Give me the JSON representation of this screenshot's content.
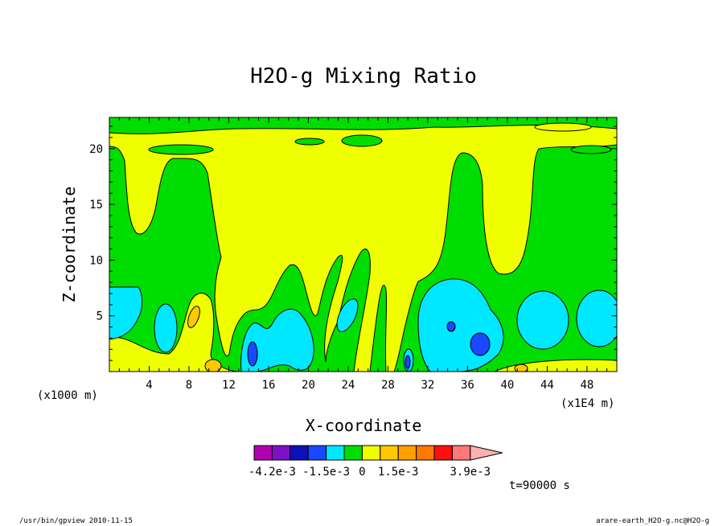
{
  "chart_data": {
    "type": "heatmap",
    "title": "H2O-g Mixing Ratio",
    "xlabel": "X-coordinate",
    "ylabel": "Z-coordinate",
    "x_unit_left": "(x1000 m)",
    "x_unit_right": "(x1E4 m)",
    "x_ticks": [
      "4",
      "8",
      "12",
      "16",
      "20",
      "24",
      "28",
      "32",
      "36",
      "40",
      "44",
      "48"
    ],
    "y_ticks": [
      "5",
      "10",
      "15",
      "20"
    ],
    "xlim": [
      0,
      51
    ],
    "ylim": [
      0,
      22.8
    ],
    "colorbar": {
      "colors": [
        "#b000b0",
        "#8010c8",
        "#1010b8",
        "#1848ff",
        "#00e8ff",
        "#00dd00",
        "#f0ff00",
        "#ffc800",
        "#ffa000",
        "#ff7800",
        "#ff1010",
        "#ff7878",
        "#ffb0b0"
      ],
      "labels": [
        "-4.2e-3",
        "-1.5e-3",
        "0",
        "1.5e-3",
        "3.9e-3"
      ]
    },
    "time_label": "t=90000 s",
    "footer_left": "/usr/bin/gpview  2010-11-15",
    "footer_right": "arare-earth_H2O-g.nc@H2O-g"
  }
}
